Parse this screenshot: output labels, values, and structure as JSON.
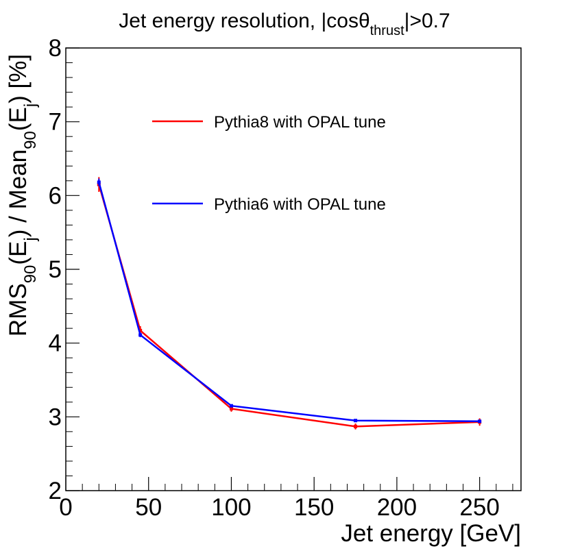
{
  "chart_data": {
    "type": "line",
    "title": "Jet energy resolution, |cosθthrust|>0.7",
    "title_parts": {
      "main": "Jet energy resolution, |cosθ",
      "sub": "thrust",
      "tail": "|>0.7"
    },
    "xlabel": "Jet energy [GeV]",
    "ylabel": "RMS90(Ej) / Mean90(Ej) [%]",
    "ylabel_parts": [
      "RMS",
      "90",
      "(E",
      "j",
      ") / Mean",
      "90",
      "(E",
      "j",
      ") [%]"
    ],
    "xlim": [
      0,
      275
    ],
    "ylim": [
      2,
      8
    ],
    "x_ticks": [
      0,
      50,
      100,
      150,
      200,
      250
    ],
    "x_tick_labels": [
      "0",
      "50",
      "100",
      "150",
      "200",
      "250"
    ],
    "y_ticks": [
      2,
      3,
      4,
      5,
      6,
      7,
      8
    ],
    "y_tick_labels": [
      "2",
      "3",
      "4",
      "5",
      "6",
      "7",
      "8"
    ],
    "grid": false,
    "legend_position": "top-center",
    "series": [
      {
        "name": "Pythia8 with OPAL tune",
        "color": "#ff0000",
        "x": [
          20,
          45,
          100,
          175,
          250
        ],
        "y": [
          6.15,
          4.17,
          3.11,
          2.87,
          2.93
        ],
        "yerr": [
          0.1,
          0.06,
          0.04,
          0.04,
          0.05
        ]
      },
      {
        "name": "Pythia6 with OPAL tune",
        "color": "#0000ff",
        "x": [
          20,
          45,
          100,
          175,
          250
        ],
        "y": [
          6.18,
          4.11,
          3.15,
          2.95,
          2.94
        ],
        "yerr": [
          0.05,
          0.03,
          0.02,
          0.02,
          0.02
        ]
      }
    ]
  }
}
